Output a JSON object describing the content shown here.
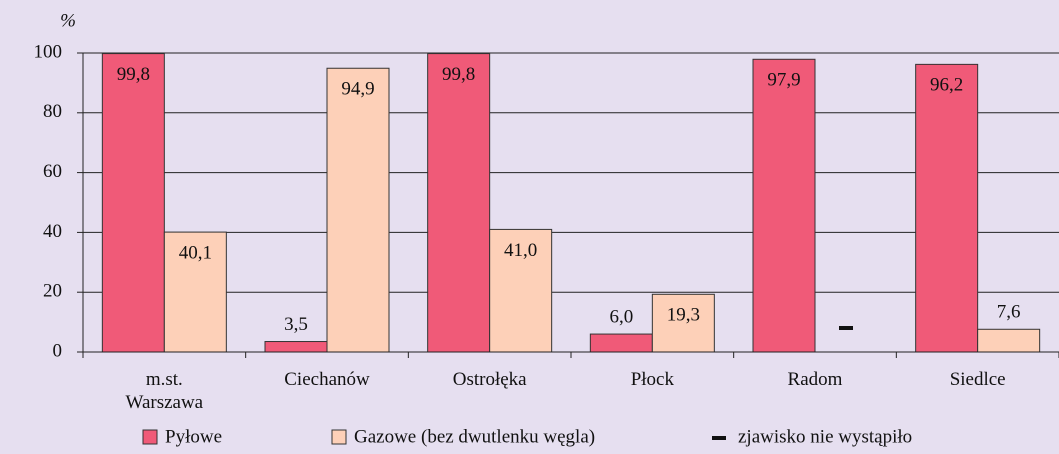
{
  "chart_data": {
    "type": "bar",
    "y_unit": "%",
    "categories": [
      "m.st. Warszawa",
      "Ciechanów",
      "Ostrołęka",
      "Płock",
      "Radom",
      "Siedlce"
    ],
    "series": [
      {
        "name": "Pyłowe",
        "color": "#f05a78",
        "values": [
          99.8,
          3.5,
          99.8,
          6.0,
          97.9,
          96.2
        ],
        "value_labels": [
          "99,8",
          "3,5",
          "99,8",
          "6,0",
          "97,9",
          "96,2"
        ]
      },
      {
        "name": "Gazowe (bez dwutlenku węgla)",
        "color": "#fdd0b8",
        "values": [
          40.1,
          94.9,
          41.0,
          19.3,
          null,
          7.6
        ],
        "value_labels": [
          "40,1",
          "94,9",
          "41,0",
          "19,3",
          null,
          "7,6"
        ]
      }
    ],
    "null_legend": "zjawisko nie wystąpiło",
    "ylim": [
      0,
      100
    ],
    "yticks": [
      0,
      20,
      40,
      60,
      80,
      100
    ],
    "grid": true
  }
}
